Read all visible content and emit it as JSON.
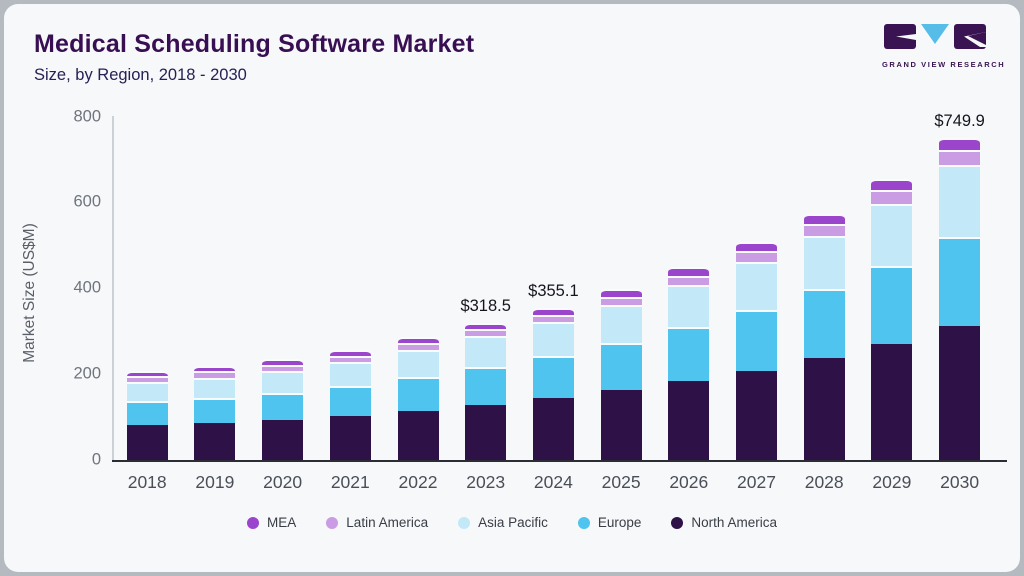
{
  "header": {
    "title": "Medical Scheduling Software Market",
    "subtitle": "Size, by Region, 2018 - 2030"
  },
  "logo": {
    "name": "grand-view-research-logo",
    "text": "GRAND VIEW RESEARCH",
    "block_color": "#3a1452",
    "v_color": "#56bce8"
  },
  "chart_data": {
    "type": "bar",
    "stacked": true,
    "title": "Medical Scheduling Software Market",
    "subtitle": "Size, by Region, 2018 - 2030",
    "ylabel": "Market Size (US$M)",
    "ylim": [
      0,
      800
    ],
    "yticks": [
      0,
      200,
      400,
      600,
      800
    ],
    "grid": false,
    "legend_position": "bottom",
    "categories": [
      "2018",
      "2019",
      "2020",
      "2021",
      "2022",
      "2023",
      "2024",
      "2025",
      "2026",
      "2027",
      "2028",
      "2029",
      "2030"
    ],
    "series": [
      {
        "name": "North America",
        "color": "#2e1147",
        "values": [
          90,
          94,
          101,
          111,
          123,
          136.7,
          152,
          170.5,
          191,
          216,
          245,
          279,
          320.6
        ]
      },
      {
        "name": "Europe",
        "color": "#4fc4ee",
        "values": [
          55,
          59,
          64,
          70,
          78,
          88.4,
          98.5,
          111,
          126,
          142,
          162,
          182,
          207.1
        ]
      },
      {
        "name": "Asia Pacific",
        "color": "#c3e8f8",
        "values": [
          43,
          46,
          50,
          55,
          62,
          70.6,
          79,
          87,
          97,
          110,
          124,
          144,
          166.8
        ]
      },
      {
        "name": "Latin America",
        "color": "#c99ce4",
        "values": [
          11,
          11,
          12,
          12,
          13,
          12.3,
          13,
          16,
          18,
          21,
          23,
          28,
          31.2
        ]
      },
      {
        "name": "MEA",
        "color": "#9a45cc",
        "values": [
          8,
          8,
          9,
          9,
          10,
          10.5,
          12.6,
          13.5,
          17,
          18,
          20,
          22,
          24.2
        ]
      }
    ],
    "totals": [
      207,
      218,
      236,
      257,
      286,
      318.5,
      355.1,
      398,
      449,
      507,
      574,
      655,
      749.9
    ],
    "annotations": [
      {
        "category": "2023",
        "label": "$318.5"
      },
      {
        "category": "2024",
        "label": "$355.1"
      },
      {
        "category": "2030",
        "label": "$749.9"
      }
    ],
    "legend": [
      "MEA",
      "Latin America",
      "Asia Pacific",
      "Europe",
      "North America"
    ]
  }
}
